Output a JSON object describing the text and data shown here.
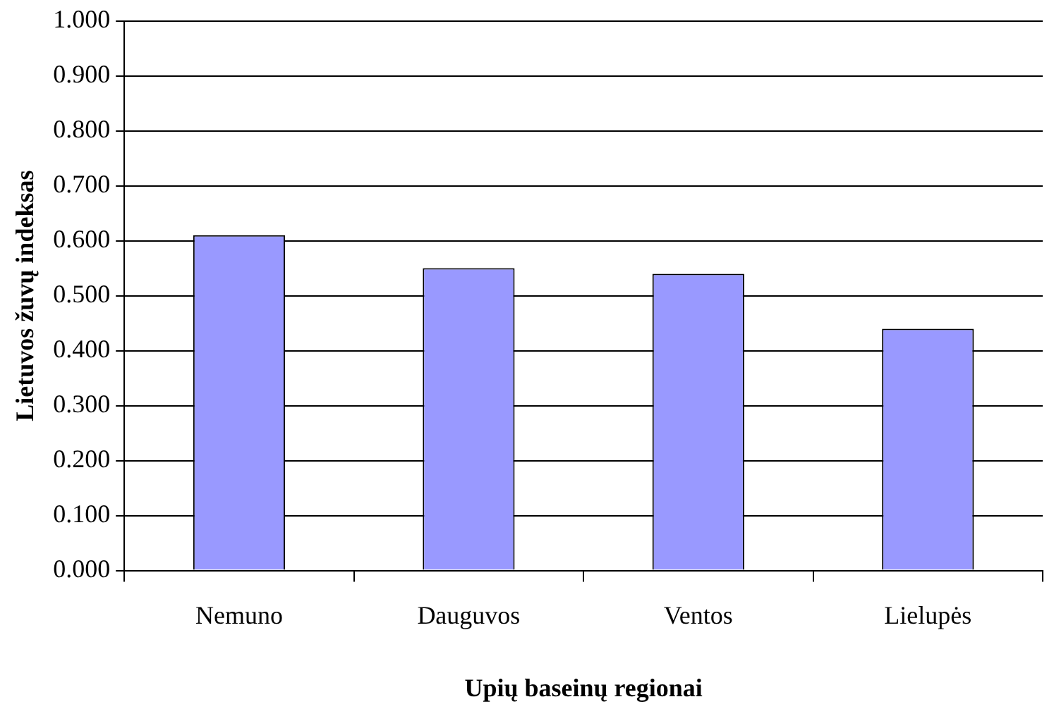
{
  "chart_data": {
    "type": "bar",
    "xlabel": "Upių baseinų regionai",
    "ylabel": "Lietuvos žuvų indeksas",
    "categories": [
      "Nemuno",
      "Dauguvos",
      "Ventos",
      "Lielupės"
    ],
    "values": [
      0.61,
      0.55,
      0.54,
      0.44
    ],
    "color": "#9999ff",
    "ylim": [
      0,
      1
    ],
    "yticks": [
      {
        "value": 0,
        "label": "0.000"
      },
      {
        "value": 0.1,
        "label": "0.100"
      },
      {
        "value": 0.2,
        "label": "0.200"
      },
      {
        "value": 0.3,
        "label": "0.300"
      },
      {
        "value": 0.4,
        "label": "0.400"
      },
      {
        "value": 0.5,
        "label": "0.500"
      },
      {
        "value": 0.6,
        "label": "0.600"
      },
      {
        "value": 0.7,
        "label": "0.700"
      },
      {
        "value": 0.8,
        "label": "0.800"
      },
      {
        "value": 0.9,
        "label": "0.900"
      },
      {
        "value": 1,
        "label": "1.000"
      }
    ],
    "grid": "y"
  }
}
